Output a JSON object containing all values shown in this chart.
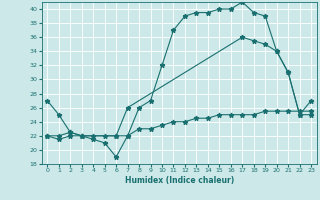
{
  "xlabel": "Humidex (Indice chaleur)",
  "bg_color": "#cce8e8",
  "grid_color": "#ffffff",
  "line_color": "#1a7070",
  "xlim": [
    -0.5,
    23.5
  ],
  "ylim": [
    18,
    41
  ],
  "yticks": [
    18,
    20,
    22,
    24,
    26,
    28,
    30,
    32,
    34,
    36,
    38,
    40
  ],
  "xticks": [
    0,
    1,
    2,
    3,
    4,
    5,
    6,
    7,
    8,
    9,
    10,
    11,
    12,
    13,
    14,
    15,
    16,
    17,
    18,
    19,
    20,
    21,
    22,
    23
  ],
  "line1_x": [
    0,
    1,
    2,
    3,
    4,
    5,
    6,
    7,
    8,
    9,
    10,
    11,
    12,
    13,
    14,
    15,
    16,
    17,
    18,
    19,
    20,
    21,
    22,
    23
  ],
  "line1_y": [
    27,
    25,
    22.5,
    22,
    21.5,
    21,
    19,
    22,
    26,
    27,
    32,
    37,
    39,
    39.5,
    39.5,
    40,
    40,
    41,
    39.5,
    39,
    34,
    31,
    25,
    25
  ],
  "line2_x": [
    0,
    1,
    2,
    3,
    4,
    5,
    6,
    7,
    8,
    9,
    10,
    11,
    12,
    13,
    14,
    15,
    16,
    17,
    18,
    19,
    20,
    21,
    22,
    23
  ],
  "line2_y": [
    22,
    21.5,
    22,
    22,
    22,
    22,
    22,
    22,
    23,
    23,
    23.5,
    24,
    24,
    24.5,
    24.5,
    25,
    25,
    25,
    25,
    25.5,
    25.5,
    25.5,
    25.5,
    25.5
  ],
  "line3_x": [
    0,
    1,
    2,
    3,
    6,
    7,
    17,
    18,
    19,
    20,
    21,
    22,
    23
  ],
  "line3_y": [
    22,
    22,
    22.5,
    22,
    22,
    26,
    36,
    35.5,
    35,
    34,
    31,
    25,
    27
  ]
}
